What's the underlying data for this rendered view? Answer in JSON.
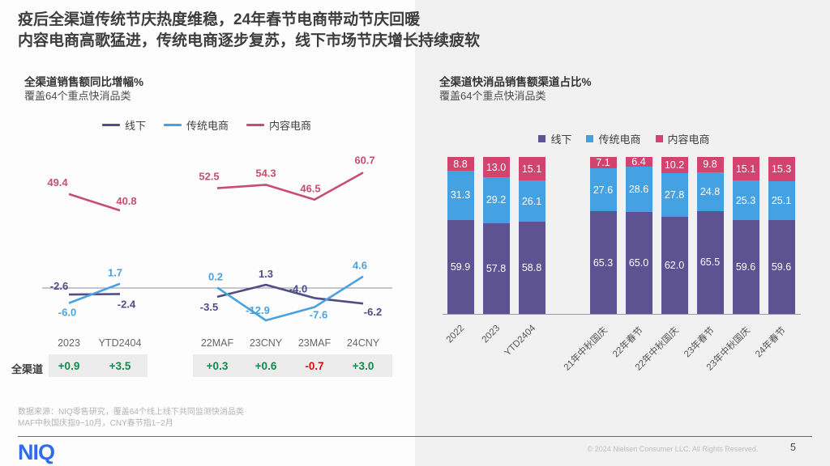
{
  "slide": {
    "title_line1": "疫后全渠道传统节庆热度维稳，24年春节电商带动节庆回暖",
    "title_line2": "内容电商高歌猛进，传统电商逐步复苏，线下市场节庆增长持续疲软",
    "footnote_line1": "数据来源：NIQ零售研究，覆盖64个线上线下共同监测快消品类",
    "footnote_line2": "MAF中秋国庆指9~10月，CNY春节指1~2月",
    "logo": "NIQ",
    "copyright": "© 2024 Nielsen Consumer LLC. All Rights Reserved.",
    "page_number": "5"
  },
  "colors": {
    "offline": "#4f4c87",
    "traditional": "#4aa1e0",
    "content": "#c64f70",
    "bar_offline": "#5d5292",
    "bar_traditional": "#44a2e2",
    "bar_content": "#d2436f",
    "green": "#108a4c",
    "red": "#d01212",
    "panel": "#f1f1f2"
  },
  "chart_data": [
    {
      "type": "line",
      "title": "全渠道销售额同比增幅%",
      "subtitle": "覆盖64个重点快消品类",
      "legend_position": "top",
      "grid": false,
      "categories": [
        "2023",
        "YTD2404",
        "22MAF",
        "23CNY",
        "23MAF",
        "24CNY"
      ],
      "group_break_after_index": 1,
      "series": [
        {
          "name": "线下",
          "color": "#4f4c87",
          "values": [
            -2.6,
            -2.4,
            -3.5,
            1.3,
            -4.0,
            -6.2
          ]
        },
        {
          "name": "传统电商",
          "color": "#4aa1e0",
          "values": [
            -6.0,
            1.7,
            0.2,
            -12.9,
            -7.6,
            4.6
          ]
        },
        {
          "name": "内容电商",
          "color": "#c64f70",
          "values": [
            49.4,
            40.8,
            52.5,
            54.3,
            46.5,
            60.7
          ]
        }
      ],
      "omni_row": {
        "label": "全渠道",
        "cells": [
          {
            "text": "+0.9",
            "color": "green"
          },
          {
            "text": "+3.5",
            "color": "green"
          },
          {
            "text": "+0.3",
            "color": "green"
          },
          {
            "text": "+0.6",
            "color": "green"
          },
          {
            "text": "-0.7",
            "color": "red"
          },
          {
            "text": "+3.0",
            "color": "green"
          }
        ]
      }
    },
    {
      "type": "stacked-bar",
      "title": "全渠道快消品销售额渠道占比%",
      "subtitle": "覆盖64个重点快消品类",
      "legend_position": "top",
      "ylim": [
        0,
        100
      ],
      "categories": [
        "2022",
        "2023",
        "YTD2404",
        "21年中秋国庆",
        "22年春节",
        "22年中秋国庆",
        "23年春节",
        "23年中秋国庆",
        "24年春节"
      ],
      "series": [
        {
          "name": "线下",
          "color": "#5d5292",
          "values": [
            59.9,
            57.8,
            58.8,
            65.3,
            65.0,
            62.0,
            65.5,
            59.6,
            59.6
          ]
        },
        {
          "name": "传统电商",
          "color": "#44a2e2",
          "values": [
            31.3,
            29.2,
            26.1,
            27.6,
            28.6,
            27.8,
            24.8,
            25.3,
            25.1
          ]
        },
        {
          "name": "内容电商",
          "color": "#d2436f",
          "values": [
            8.8,
            13.0,
            15.1,
            7.1,
            6.4,
            10.2,
            9.8,
            15.1,
            15.3
          ]
        }
      ]
    }
  ]
}
